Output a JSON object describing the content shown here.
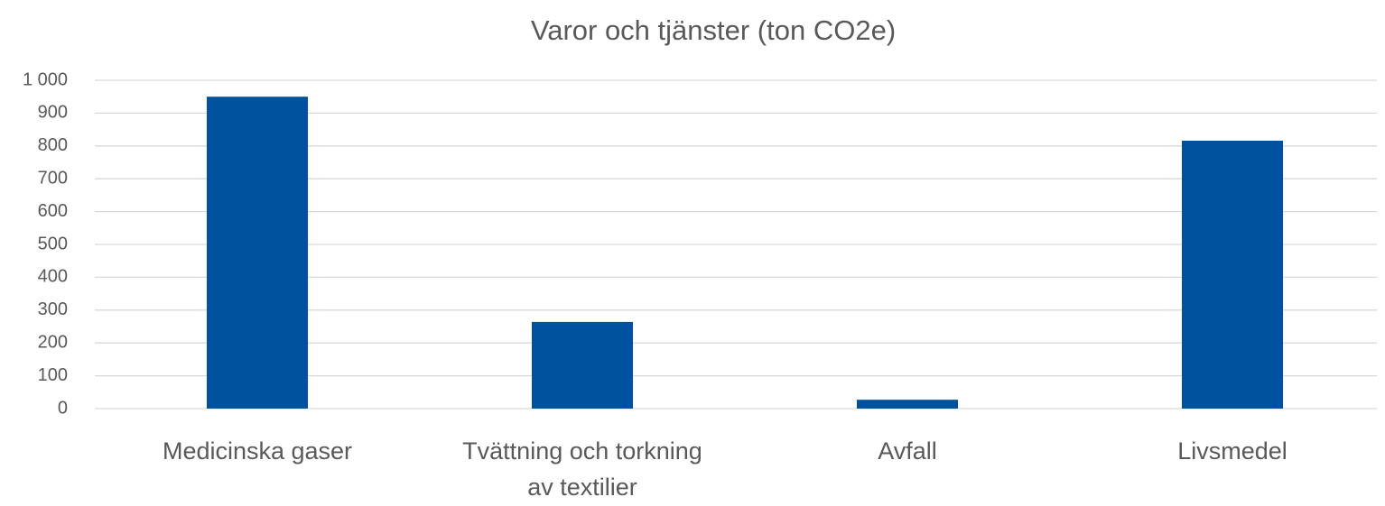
{
  "chart_data": {
    "type": "bar",
    "title": "Varor och tjänster (ton CO2e)",
    "categories": [
      "Medicinska gaser",
      "Tvättning och torkning av textilier",
      "Avfall",
      "Livsmedel"
    ],
    "values": [
      950,
      264,
      27,
      816
    ],
    "color": "#00519e",
    "ylim": [
      0,
      1000
    ],
    "yticks": [
      0,
      100,
      200,
      300,
      400,
      500,
      600,
      700,
      800,
      900,
      {
        "value": 1000,
        "label": "1 000"
      }
    ],
    "grid": true
  }
}
